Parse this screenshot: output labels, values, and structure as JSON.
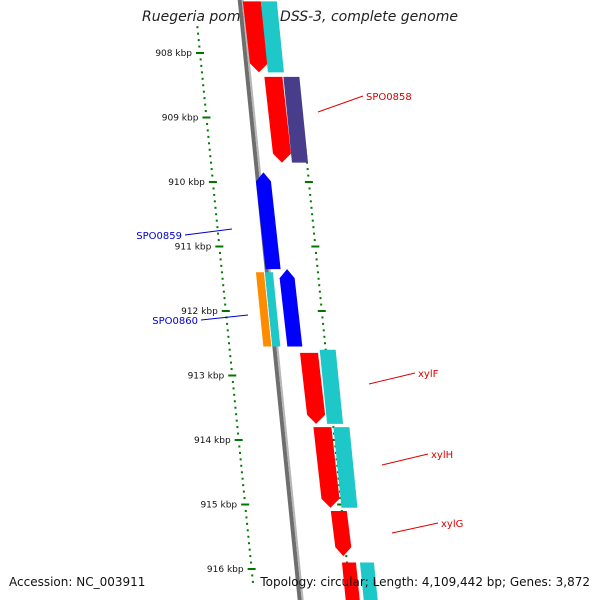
{
  "title": "Ruegeria pomeroyi DSS-3, complete genome",
  "accession": "Accession: NC_003911",
  "topology": "Topology: circular; Length: 4,109,442 bp; Genes: 3,872",
  "colors": {
    "red": "#ff0000",
    "cyan": "#1fc8c8",
    "navy": "#483d8b",
    "blue": "#0000ff",
    "orange": "#ff8c00",
    "tick_green": "#007700",
    "backbone": "#888888",
    "label_red": "#dd0000",
    "label_blue": "#0000cc"
  },
  "tick_labels": [
    {
      "label": "908 kbp",
      "kbp": 908
    },
    {
      "label": "909 kbp",
      "kbp": 909
    },
    {
      "label": "910 kbp",
      "kbp": 910
    },
    {
      "label": "911 kbp",
      "kbp": 911
    },
    {
      "label": "912 kbp",
      "kbp": 912
    },
    {
      "label": "913 kbp",
      "kbp": 913
    },
    {
      "label": "914 kbp",
      "kbp": 914
    },
    {
      "label": "915 kbp",
      "kbp": 915
    },
    {
      "label": "916 kbp",
      "kbp": 916
    }
  ],
  "genes": [
    {
      "name": "SPO0858",
      "labeled": true,
      "strand": "forward",
      "start_kbp": 909.0,
      "end_kbp": 909.7,
      "color": "navy"
    },
    {
      "name": "SPO0859",
      "labeled": true,
      "strand": "reverse",
      "start_kbp": 909.85,
      "end_kbp": 911.35,
      "color": "blue"
    },
    {
      "name": "SPO0860",
      "labeled": true,
      "strand": "reverse",
      "start_kbp": 911.35,
      "end_kbp": 912.55,
      "color": "blue"
    },
    {
      "name": "xylF",
      "labeled": true,
      "strand": "forward",
      "start_kbp": 912.65,
      "end_kbp": 913.75,
      "color": "red"
    },
    {
      "name": "xylH",
      "labeled": true,
      "strand": "forward",
      "start_kbp": 913.8,
      "end_kbp": 915.05,
      "color": "red"
    },
    {
      "name": "xylG",
      "labeled": true,
      "strand": "forward",
      "start_kbp": 915.1,
      "end_kbp": 915.8,
      "color": "red"
    }
  ]
}
